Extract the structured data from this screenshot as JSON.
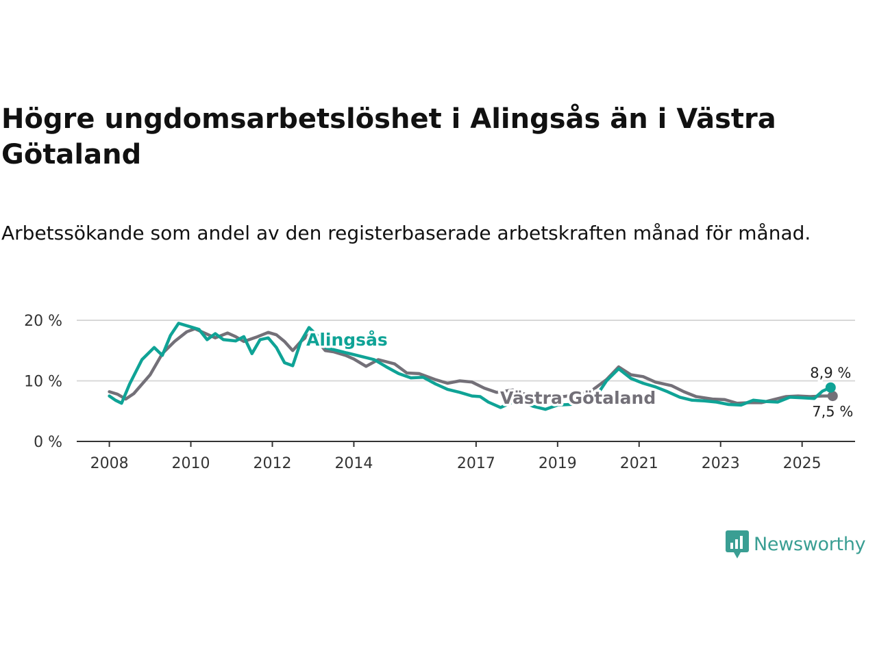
{
  "title": "Högre ungdomsarbetslöshet i Alingsås än i Västra Götaland",
  "subtitle": "Arbetssökande som andel av den registerbaserade arbetskraften månad för månad.",
  "brand": {
    "name": "Newsworthy",
    "color": "#3a9e93"
  },
  "colors": {
    "alingsas": "#0fa396",
    "vastra": "#737078",
    "grid": "#d8d8d8",
    "axis": "#333333"
  },
  "chart_data": {
    "type": "line",
    "title": "Högre ungdomsarbetslöshet i Alingsås än i Västra Götaland",
    "xlabel": "",
    "ylabel": "",
    "xlim": [
      2007.2,
      2026.3
    ],
    "ylim": [
      0,
      20
    ],
    "yticks": [
      0,
      10,
      20
    ],
    "ytick_labels": [
      "0 %",
      "10 %",
      "20 %"
    ],
    "xticks": [
      2008,
      2010,
      2012,
      2014,
      2017,
      2019,
      2021,
      2023,
      2025
    ],
    "xtick_labels": [
      "2008",
      "2010",
      "2012",
      "2014",
      "2017",
      "2019",
      "2021",
      "2023",
      "2025"
    ],
    "series": [
      {
        "name": "Västra Götaland",
        "label": "Västra Götaland",
        "color": "#737078",
        "end_label": "7,5 %",
        "x": [
          2008.0,
          2008.2,
          2008.4,
          2008.6,
          2009.0,
          2009.3,
          2009.6,
          2009.9,
          2010.1,
          2010.3,
          2010.6,
          2010.9,
          2011.1,
          2011.3,
          2011.6,
          2011.9,
          2012.1,
          2012.3,
          2012.5,
          2012.7,
          2012.9,
          2013.1,
          2013.3,
          2013.5,
          2013.8,
          2014.0,
          2014.3,
          2014.6,
          2015.0,
          2015.3,
          2015.6,
          2016.0,
          2016.3,
          2016.6,
          2016.9,
          2017.2,
          2017.5,
          2017.9,
          2018.2,
          2018.6,
          2019.0,
          2019.4,
          2019.8,
          2020.2,
          2020.5,
          2020.8,
          2021.1,
          2021.4,
          2021.8,
          2022.1,
          2022.4,
          2022.8,
          2023.1,
          2023.4,
          2023.7,
          2024.0,
          2024.3,
          2024.6,
          2024.9,
          2025.2,
          2025.5,
          2025.75
        ],
        "values": [
          8.2,
          7.8,
          7.0,
          7.9,
          11.0,
          14.5,
          16.5,
          18.1,
          18.6,
          18.0,
          17.1,
          17.9,
          17.3,
          16.5,
          17.2,
          18.0,
          17.6,
          16.5,
          15.0,
          16.5,
          17.6,
          16.6,
          15.0,
          14.8,
          14.2,
          13.6,
          12.4,
          13.5,
          12.8,
          11.3,
          11.2,
          10.2,
          9.6,
          10.0,
          9.8,
          8.8,
          8.1,
          8.5,
          7.8,
          7.2,
          7.3,
          7.6,
          8.2,
          10.2,
          12.3,
          11.0,
          10.7,
          9.8,
          9.2,
          8.2,
          7.4,
          7.0,
          6.9,
          6.3,
          6.4,
          6.4,
          6.9,
          7.4,
          7.5,
          7.4,
          7.5,
          7.5
        ]
      },
      {
        "name": "Alingsås",
        "label": "Alingsås",
        "color": "#0fa396",
        "end_label": "8,9 %",
        "x": [
          2008.0,
          2008.15,
          2008.3,
          2008.5,
          2008.8,
          2009.1,
          2009.3,
          2009.5,
          2009.7,
          2010.0,
          2010.2,
          2010.4,
          2010.6,
          2010.8,
          2011.1,
          2011.3,
          2011.5,
          2011.7,
          2011.9,
          2012.1,
          2012.3,
          2012.5,
          2012.7,
          2012.9,
          2013.1,
          2013.3,
          2013.6,
          2013.9,
          2014.2,
          2014.5,
          2014.8,
          2015.1,
          2015.4,
          2015.7,
          2016.0,
          2016.3,
          2016.6,
          2016.9,
          2017.1,
          2017.3,
          2017.6,
          2017.9,
          2018.1,
          2018.4,
          2018.7,
          2019.0,
          2019.3,
          2019.6,
          2019.9,
          2020.2,
          2020.5,
          2020.8,
          2021.1,
          2021.4,
          2021.7,
          2022.0,
          2022.3,
          2022.6,
          2022.9,
          2023.2,
          2023.5,
          2023.8,
          2024.1,
          2024.4,
          2024.7,
          2025.0,
          2025.3,
          2025.5,
          2025.7
        ],
        "values": [
          7.5,
          6.8,
          6.3,
          9.5,
          13.5,
          15.5,
          14.2,
          17.5,
          19.5,
          18.9,
          18.5,
          16.8,
          17.8,
          16.8,
          16.6,
          17.3,
          14.5,
          16.8,
          17.1,
          15.5,
          13.0,
          12.5,
          16.5,
          18.8,
          17.5,
          15.5,
          15.0,
          14.5,
          14.0,
          13.5,
          12.3,
          11.2,
          10.5,
          10.6,
          9.5,
          8.6,
          8.1,
          7.5,
          7.4,
          6.5,
          5.6,
          6.5,
          6.7,
          5.8,
          5.3,
          6.0,
          6.1,
          6.3,
          7.0,
          10.0,
          12.0,
          10.4,
          9.6,
          9.0,
          8.2,
          7.3,
          6.8,
          6.7,
          6.5,
          6.1,
          6.0,
          6.8,
          6.6,
          6.5,
          7.3,
          7.2,
          7.1,
          8.3,
          8.9
        ]
      }
    ]
  }
}
